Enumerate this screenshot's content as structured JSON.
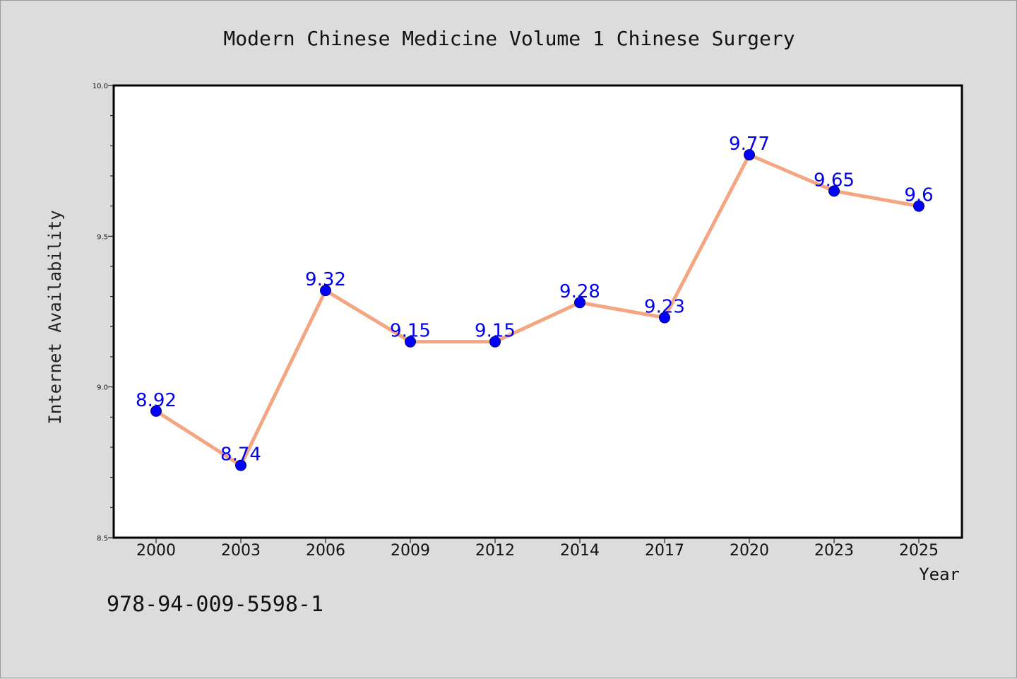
{
  "chart_data": {
    "type": "line",
    "title": "Modern Chinese Medicine Volume 1 Chinese Surgery",
    "xlabel": "Year",
    "ylabel": "Internet Availability",
    "categories": [
      "2000",
      "2003",
      "2006",
      "2009",
      "2012",
      "2014",
      "2017",
      "2020",
      "2023",
      "2025"
    ],
    "series": [
      {
        "values": [
          8.92,
          8.74,
          9.32,
          9.15,
          9.15,
          9.28,
          9.23,
          9.77,
          9.65,
          9.6
        ]
      }
    ],
    "data_labels": [
      "8.92",
      "8.74",
      "9.32",
      "9.15",
      "9.15",
      "9.28",
      "9.23",
      "9.77",
      "9.65",
      "9.6"
    ],
    "ylim": [
      8.5,
      10.0
    ],
    "yticks": [
      "8.5",
      "9.0",
      "9.5",
      "10.0"
    ],
    "grid": false,
    "colors": {
      "line": "#f4a582",
      "marker": "#0000ff",
      "label": "#0000ee",
      "background": "#dcdcdc",
      "plot_background": "#ffffff"
    }
  },
  "footer": {
    "isbn": "978-94-009-5598-1"
  }
}
